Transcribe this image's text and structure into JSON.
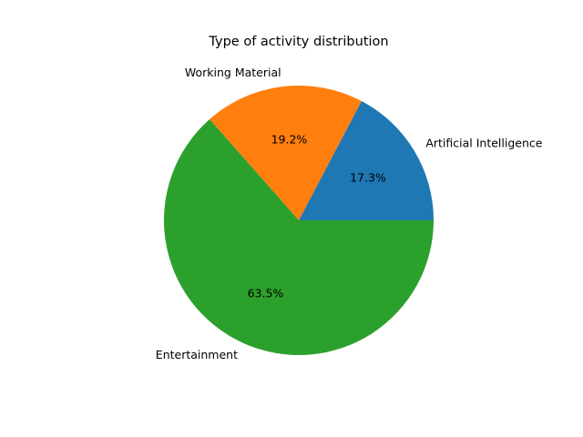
{
  "chart_data": {
    "type": "pie",
    "title": "Type of activity distribution",
    "categories": [
      "Artificial Intelligence",
      "Working Material",
      "Entertainment"
    ],
    "values": [
      17.3,
      19.2,
      63.5
    ],
    "percent_labels": [
      "17.3%",
      "19.2%",
      "63.5%"
    ],
    "colors": [
      "#1f77b4",
      "#ff7f0e",
      "#2ca02c"
    ],
    "start_angle_deg": 0,
    "direction": "counterclockwise",
    "legend": "none"
  }
}
